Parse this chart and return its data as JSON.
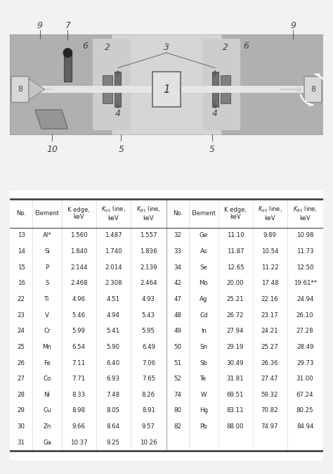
{
  "fig_bg": "#f2f2f2",
  "diag_outer_bg": "#c0c0c0",
  "diag_left_dark": "#a8a8a8",
  "diag_right_dark": "#a8a8a8",
  "diag_center_light": "#d8d8d8",
  "diag_inner_light": "#c8c8c8",
  "slit_dark": "#787878",
  "slit_med": "#909090",
  "beam_color": "#e8e8e8",
  "cylinder_color": "#d0d0d0",
  "tube_dark": "#303030",
  "crystal_color": "#909090",
  "left_data": [
    [
      "13",
      "Al*",
      "1.560",
      "1.487",
      "1.557"
    ],
    [
      "14",
      "Si",
      "1.840",
      "1.740",
      "1.836"
    ],
    [
      "15",
      "P",
      "2.144",
      "2.014",
      "2.139"
    ],
    [
      "16",
      "S",
      "2.468",
      "2.308",
      "2.464"
    ],
    [
      "22",
      "Ti",
      "4.96",
      "4.51",
      "4.93"
    ],
    [
      "23",
      "V",
      "5.46",
      "4.94",
      "5.43"
    ],
    [
      "24",
      "Cr",
      "5.99",
      "5.41",
      "5.95"
    ],
    [
      "25",
      "Mn",
      "6.54",
      "5.90",
      "6.49"
    ],
    [
      "26",
      "Fe",
      "7.11",
      "6.40",
      "7.06"
    ],
    [
      "27",
      "Co",
      "7.71",
      "6.93",
      "7.65"
    ],
    [
      "28",
      "Ni",
      "8.33",
      "7.48",
      "8.26"
    ],
    [
      "29",
      "Cu",
      "8.98",
      "8.05",
      "8.91"
    ],
    [
      "30",
      "Zn",
      "9.66",
      "8.64",
      "9.57"
    ],
    [
      "31",
      "Ga",
      "10.37",
      "9.25",
      "10.26"
    ]
  ],
  "right_data": [
    [
      "32",
      "Ge",
      "11.10",
      "9.89",
      "10.98"
    ],
    [
      "33",
      "As",
      "11.87",
      "10.54",
      "11.73"
    ],
    [
      "34",
      "Se",
      "12.65",
      "11.22",
      "12.50"
    ],
    [
      "42",
      "Mo",
      "20.00",
      "17.48",
      "19.61**"
    ],
    [
      "47",
      "Ag",
      "25.21",
      "22.16",
      "24.94"
    ],
    [
      "48",
      "Cd",
      "26.72",
      "23.17",
      "26.10"
    ],
    [
      "49",
      "In",
      "27.94",
      "24.21",
      "27.28"
    ],
    [
      "50",
      "Sn",
      "29.19",
      "25.27",
      "28.49"
    ],
    [
      "51",
      "Sb",
      "30.49",
      "26.36",
      "29.73"
    ],
    [
      "52",
      "Te",
      "31.81",
      "27.47",
      "31.00"
    ],
    [
      "74",
      "W",
      "69.51",
      "59.32",
      "67.24"
    ],
    [
      "80",
      "Hg",
      "83.11",
      "70.82",
      "80.25"
    ],
    [
      "82",
      "Pb",
      "88.00",
      "74.97",
      "84.94"
    ]
  ],
  "lhdrs": [
    "No.",
    "Element",
    "K edge,\nkeV",
    "Ka1 line,\nkeV",
    "Kb1 line,\nkeV"
  ],
  "rhdrs": [
    "No.",
    "Element",
    "K edge,\nkeV",
    "Ka1 line,\nkeV",
    "Kb1 line,\nkeV"
  ]
}
